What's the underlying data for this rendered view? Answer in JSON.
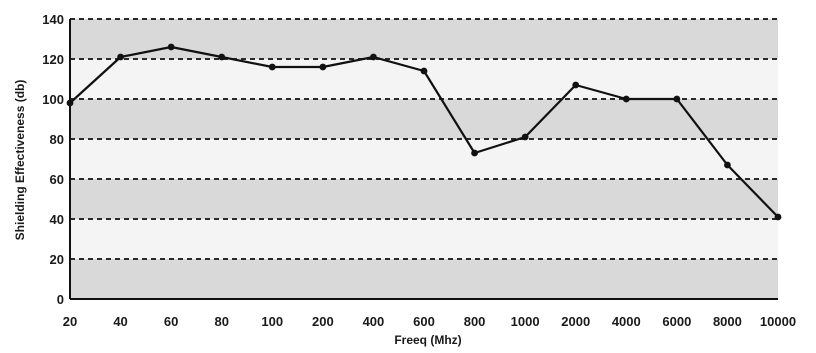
{
  "chart_data": {
    "type": "line",
    "title": "",
    "xlabel": "Freeq (Mhz)",
    "ylabel": "Shielding Effectiveness (db)",
    "categories": [
      "20",
      "40",
      "60",
      "80",
      "100",
      "200",
      "400",
      "600",
      "800",
      "1000",
      "2000",
      "4000",
      "6000",
      "8000",
      "10000"
    ],
    "series": [
      {
        "values": [
          98,
          121,
          126,
          121,
          116,
          116,
          121,
          114,
          73,
          81,
          107,
          100,
          100,
          67,
          41
        ]
      }
    ],
    "ylim": [
      0,
      140
    ],
    "yticks": [
      "0",
      "20",
      "40",
      "60",
      "80",
      "100",
      "120",
      "140"
    ],
    "grid": true,
    "legend": "none",
    "colors": {
      "line": "#111111",
      "marker": "#111111",
      "band": "#d9d9d9",
      "gridline": "#2a2a2a"
    }
  }
}
